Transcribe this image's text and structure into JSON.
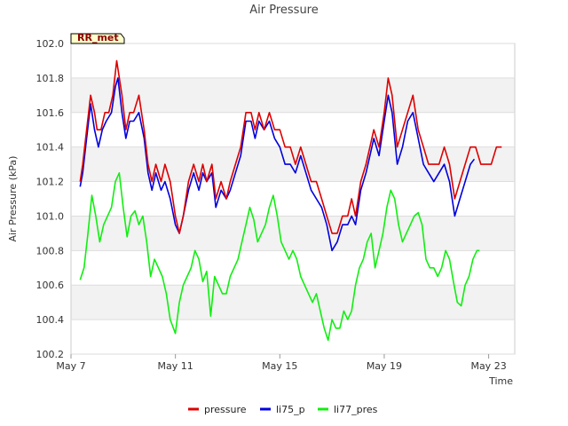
{
  "chart_data": {
    "type": "line",
    "title": "Air Pressure",
    "xlabel": "Time",
    "ylabel": "Air Pressure (kPa)",
    "badge": "RR_met",
    "x_ticks": [
      "May 7",
      "May 11",
      "May 15",
      "May 19",
      "May 23"
    ],
    "x_tick_days": [
      7,
      11,
      15,
      19,
      23
    ],
    "xlim": [
      7,
      24
    ],
    "ylim": [
      100.2,
      102.0
    ],
    "y_ticks": [
      "100.2",
      "100.4",
      "100.6",
      "100.8",
      "101.0",
      "101.2",
      "101.4",
      "101.6",
      "101.8",
      "102.0"
    ],
    "y_tick_values": [
      100.2,
      100.4,
      100.6,
      100.8,
      101.0,
      101.2,
      101.4,
      101.6,
      101.8,
      102.0
    ],
    "grid": "horizontal bands",
    "legend_position": "bottom",
    "series": [
      {
        "name": "pressure",
        "color": "#dd0000",
        "x": [
          7.35,
          7.45,
          7.6,
          7.75,
          7.9,
          8.0,
          8.15,
          8.3,
          8.45,
          8.6,
          8.75,
          8.95,
          9.1,
          9.25,
          9.4,
          9.6,
          9.8,
          9.95,
          10.1,
          10.25,
          10.45,
          10.6,
          10.8,
          11.0,
          11.15,
          11.3,
          11.5,
          11.7,
          11.9,
          12.05,
          12.2,
          12.4,
          12.55,
          12.75,
          12.95,
          13.1,
          13.3,
          13.5,
          13.7,
          13.9,
          14.05,
          14.2,
          14.4,
          14.6,
          14.8,
          15.0,
          15.2,
          15.4,
          15.6,
          15.8,
          16.0,
          16.2,
          16.4,
          16.6,
          16.8,
          17.0,
          17.2,
          17.4,
          17.6,
          17.75,
          17.9,
          18.1,
          18.3,
          18.45,
          18.6,
          18.8,
          19.0,
          19.15,
          19.3,
          19.5,
          19.7,
          19.9,
          20.1,
          20.3,
          20.5,
          20.7,
          20.9,
          21.1,
          21.3,
          21.5,
          21.7,
          21.9,
          22.1,
          22.3,
          22.5,
          22.7,
          22.9,
          23.1,
          23.3,
          23.5
        ],
        "y": [
          101.2,
          101.3,
          101.5,
          101.7,
          101.6,
          101.5,
          101.5,
          101.6,
          101.6,
          101.7,
          101.9,
          101.7,
          101.5,
          101.6,
          101.6,
          101.7,
          101.5,
          101.3,
          101.2,
          101.3,
          101.2,
          101.3,
          101.2,
          101.0,
          100.9,
          101.0,
          101.2,
          101.3,
          101.2,
          101.3,
          101.2,
          101.3,
          101.1,
          101.2,
          101.1,
          101.2,
          101.3,
          101.4,
          101.6,
          101.6,
          101.5,
          101.6,
          101.5,
          101.6,
          101.5,
          101.5,
          101.4,
          101.4,
          101.3,
          101.4,
          101.3,
          101.2,
          101.2,
          101.1,
          101.0,
          100.9,
          100.9,
          101.0,
          101.0,
          101.1,
          101.0,
          101.2,
          101.3,
          101.4,
          101.5,
          101.4,
          101.6,
          101.8,
          101.7,
          101.4,
          101.5,
          101.6,
          101.7,
          101.5,
          101.4,
          101.3,
          101.3,
          101.3,
          101.4,
          101.3,
          101.1,
          101.2,
          101.3,
          101.4,
          101.4,
          101.3,
          101.3,
          101.3,
          101.4,
          101.4
        ]
      },
      {
        "name": "li75_p",
        "color": "#0000dd",
        "x": [
          7.35,
          7.45,
          7.6,
          7.75,
          7.9,
          8.05,
          8.2,
          8.35,
          8.55,
          8.7,
          8.8,
          8.95,
          9.1,
          9.25,
          9.4,
          9.6,
          9.8,
          9.95,
          10.1,
          10.25,
          10.45,
          10.6,
          10.8,
          11.0,
          11.15,
          11.3,
          11.5,
          11.7,
          11.9,
          12.05,
          12.2,
          12.4,
          12.55,
          12.75,
          12.95,
          13.1,
          13.3,
          13.5,
          13.7,
          13.9,
          14.05,
          14.2,
          14.4,
          14.6,
          14.8,
          15.0,
          15.2,
          15.4,
          15.6,
          15.8,
          16.0,
          16.2,
          16.4,
          16.6,
          16.8,
          17.0,
          17.2,
          17.4,
          17.6,
          17.75,
          17.9,
          18.1,
          18.3,
          18.45,
          18.6,
          18.8,
          19.0,
          19.15,
          19.3,
          19.5,
          19.7,
          19.9,
          20.1,
          20.3,
          20.5,
          20.7,
          20.9,
          21.1,
          21.3,
          21.5,
          21.7,
          21.9,
          22.1,
          22.3,
          22.45
        ],
        "y": [
          101.17,
          101.25,
          101.45,
          101.65,
          101.5,
          101.4,
          101.5,
          101.55,
          101.6,
          101.75,
          101.8,
          101.6,
          101.45,
          101.55,
          101.55,
          101.6,
          101.45,
          101.25,
          101.15,
          101.25,
          101.15,
          101.2,
          101.1,
          100.95,
          100.9,
          101.0,
          101.15,
          101.25,
          101.15,
          101.25,
          101.2,
          101.25,
          101.05,
          101.15,
          101.1,
          101.15,
          101.25,
          101.35,
          101.55,
          101.55,
          101.45,
          101.55,
          101.5,
          101.55,
          101.45,
          101.4,
          101.3,
          101.3,
          101.25,
          101.35,
          101.25,
          101.15,
          101.1,
          101.05,
          100.95,
          100.8,
          100.85,
          100.95,
          100.95,
          101.0,
          100.95,
          101.15,
          101.25,
          101.35,
          101.45,
          101.35,
          101.55,
          101.7,
          101.6,
          101.3,
          101.4,
          101.55,
          101.6,
          101.45,
          101.3,
          101.25,
          101.2,
          101.25,
          101.3,
          101.2,
          101.0,
          101.1,
          101.2,
          101.3,
          101.33
        ]
      },
      {
        "name": "li77_pres",
        "color": "#11ee11",
        "x": [
          7.35,
          7.5,
          7.65,
          7.8,
          7.95,
          8.1,
          8.25,
          8.4,
          8.55,
          8.7,
          8.85,
          9.0,
          9.15,
          9.3,
          9.45,
          9.6,
          9.75,
          9.9,
          10.05,
          10.2,
          10.35,
          10.5,
          10.65,
          10.8,
          11.0,
          11.15,
          11.3,
          11.45,
          11.6,
          11.75,
          11.9,
          12.05,
          12.2,
          12.35,
          12.5,
          12.65,
          12.8,
          12.95,
          13.1,
          13.25,
          13.4,
          13.55,
          13.7,
          13.85,
          14.0,
          14.15,
          14.3,
          14.45,
          14.6,
          14.75,
          14.9,
          15.05,
          15.2,
          15.35,
          15.5,
          15.65,
          15.8,
          15.95,
          16.1,
          16.25,
          16.4,
          16.55,
          16.7,
          16.85,
          17.0,
          17.15,
          17.3,
          17.45,
          17.6,
          17.75,
          17.9,
          18.05,
          18.2,
          18.35,
          18.5,
          18.65,
          18.8,
          18.95,
          19.1,
          19.25,
          19.4,
          19.55,
          19.7,
          19.85,
          20.0,
          20.15,
          20.3,
          20.45,
          20.6,
          20.75,
          20.9,
          21.05,
          21.2,
          21.35,
          21.5,
          21.65,
          21.8,
          21.95,
          22.1,
          22.25,
          22.4,
          22.55,
          22.65
        ],
        "y": [
          100.63,
          100.7,
          100.9,
          101.12,
          101.0,
          100.85,
          100.95,
          101.0,
          101.05,
          101.2,
          101.25,
          101.05,
          100.88,
          101.0,
          101.03,
          100.95,
          101.0,
          100.85,
          100.65,
          100.75,
          100.7,
          100.65,
          100.55,
          100.4,
          100.32,
          100.5,
          100.6,
          100.65,
          100.7,
          100.8,
          100.75,
          100.62,
          100.68,
          100.42,
          100.65,
          100.6,
          100.55,
          100.55,
          100.65,
          100.7,
          100.75,
          100.85,
          100.95,
          101.05,
          100.98,
          100.85,
          100.9,
          100.95,
          101.05,
          101.12,
          101.0,
          100.85,
          100.8,
          100.75,
          100.8,
          100.75,
          100.65,
          100.6,
          100.55,
          100.5,
          100.55,
          100.45,
          100.35,
          100.28,
          100.4,
          100.35,
          100.35,
          100.45,
          100.4,
          100.45,
          100.6,
          100.7,
          100.75,
          100.85,
          100.9,
          100.7,
          100.8,
          100.9,
          101.05,
          101.15,
          101.1,
          100.95,
          100.85,
          100.9,
          100.95,
          101.0,
          101.02,
          100.95,
          100.75,
          100.7,
          100.7,
          100.65,
          100.7,
          100.8,
          100.75,
          100.62,
          100.5,
          100.48,
          100.6,
          100.65,
          100.75,
          100.8,
          100.8
        ]
      }
    ]
  }
}
